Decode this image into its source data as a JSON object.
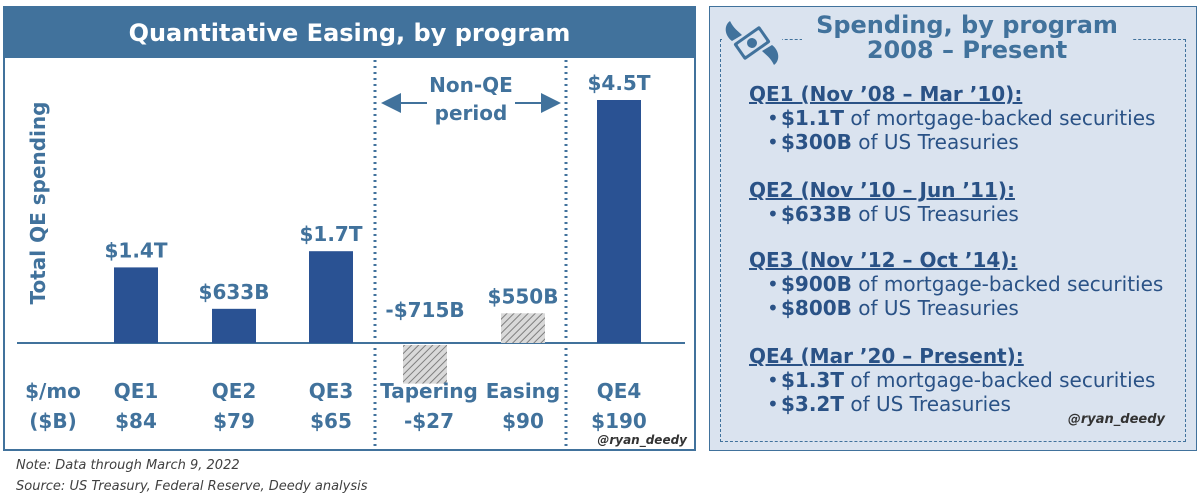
{
  "left": {
    "title": "Quantitative Easing, by program",
    "ylabel": "Total QE spending",
    "non_qe_label_line1": "Non-QE",
    "non_qe_label_line2": "period",
    "rate_label_line1": "$/mo",
    "rate_label_line2": "($B)",
    "watermark": "@ryan_deedy"
  },
  "chart_data": {
    "type": "bar",
    "title": "Quantitative Easing, by program",
    "ylabel": "Total QE spending",
    "categories": [
      "QE1",
      "QE2",
      "QE3",
      "Tapering",
      "Easing",
      "QE4"
    ],
    "values_billions": [
      1400,
      633,
      1700,
      -715,
      550,
      4500
    ],
    "value_labels": [
      "$1.4T",
      "$633B",
      "$1.7T",
      "-$715B",
      "$550B",
      "$4.5T"
    ],
    "monthly_rate_billions": [
      84,
      79,
      65,
      -27,
      90,
      190
    ],
    "monthly_rate_labels": [
      "$84",
      "$79",
      "$65",
      "-$27",
      "$90",
      "$190"
    ],
    "non_qe": [
      false,
      false,
      false,
      true,
      true,
      false
    ],
    "colors": {
      "qe": "#2a5293",
      "non_qe_hatch": "#a6a6a6",
      "label": "#41729c"
    }
  },
  "right": {
    "title_line1": "Spending, by program",
    "title_line2": "2008 – Present",
    "programs": [
      {
        "heading": "QE1 (Nov ’08 – Mar ’10):",
        "bullets": [
          {
            "bold": "$1.1T",
            "text": " of mortgage-backed securities"
          },
          {
            "bold": "$300B",
            "text": " of US Treasuries"
          }
        ]
      },
      {
        "heading": "QE2 (Nov ’10 – Jun ’11):",
        "bullets": [
          {
            "bold": "$633B",
            "text": " of US Treasuries"
          }
        ]
      },
      {
        "heading": "QE3 (Nov ’12 – Oct ’14):",
        "bullets": [
          {
            "bold": "$900B",
            "text": " of mortgage-backed securities"
          },
          {
            "bold": "$800B",
            "text": " of US Treasuries"
          }
        ]
      },
      {
        "heading": "QE4 (Mar ’20 – Present):",
        "bullets": [
          {
            "bold": "$1.3T",
            "text": " of mortgage-backed securities"
          },
          {
            "bold": "$3.2T",
            "text": " of US Treasuries"
          }
        ]
      }
    ],
    "watermark": "@ryan_deedy",
    "icon": "flying-money-icon"
  },
  "footer": {
    "note": "Note: Data through March 9, 2022",
    "source": "Source: US Treasury, Federal Reserve, Deedy analysis"
  }
}
